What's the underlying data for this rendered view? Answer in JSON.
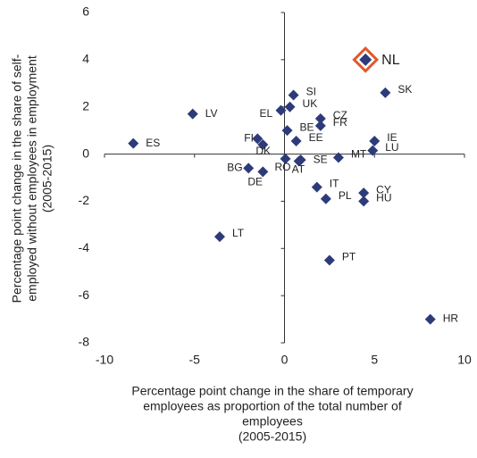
{
  "chart_data": {
    "type": "scatter",
    "x_label": [
      "Percentage point change in the share of temporary",
      "employees as proportion of the total number of",
      "employees",
      "(2005-2015)"
    ],
    "y_label": [
      "Percentage point change in the share of self-",
      "employed without employees in employment",
      "(2005-2015)"
    ],
    "labels": [
      "NL",
      "SK",
      "SI",
      "UK",
      "EL",
      "LV",
      "CZ",
      "FR",
      "BE",
      "FI",
      "DK",
      "EE",
      "IE",
      "ES",
      "LU",
      "MT",
      "SE",
      "RO",
      "AT",
      "BG",
      "DE",
      "IT",
      "CY",
      "PL",
      "HU",
      "LT",
      "PT",
      "HR"
    ],
    "x": [
      4.5,
      5.6,
      0.5,
      0.3,
      -0.2,
      -5.1,
      2.0,
      2.0,
      0.15,
      -1.5,
      -1.2,
      0.65,
      5.0,
      -8.4,
      4.9,
      3.0,
      0.9,
      0.05,
      0.8,
      -2.0,
      -1.2,
      1.8,
      4.4,
      2.3,
      4.4,
      -3.6,
      2.5,
      8.1
    ],
    "y": [
      4.0,
      2.6,
      2.5,
      2.0,
      1.85,
      1.7,
      1.5,
      1.2,
      1.0,
      0.65,
      0.4,
      0.55,
      0.55,
      0.45,
      0.15,
      -0.15,
      -0.25,
      -0.2,
      -0.3,
      -0.6,
      -0.75,
      -1.4,
      -1.65,
      -1.9,
      -2.0,
      -3.5,
      -4.5,
      -7.0
    ],
    "color": "#2e3b7a",
    "highlight": "NL",
    "highlight_color": "#e0592a",
    "xlim": [
      -10,
      10
    ],
    "xticks": [
      -10,
      -5,
      0,
      5,
      10
    ],
    "ylim": [
      -8,
      6
    ],
    "yticks": [
      -8,
      -6,
      -4,
      -2,
      0,
      2,
      4,
      6
    ]
  }
}
